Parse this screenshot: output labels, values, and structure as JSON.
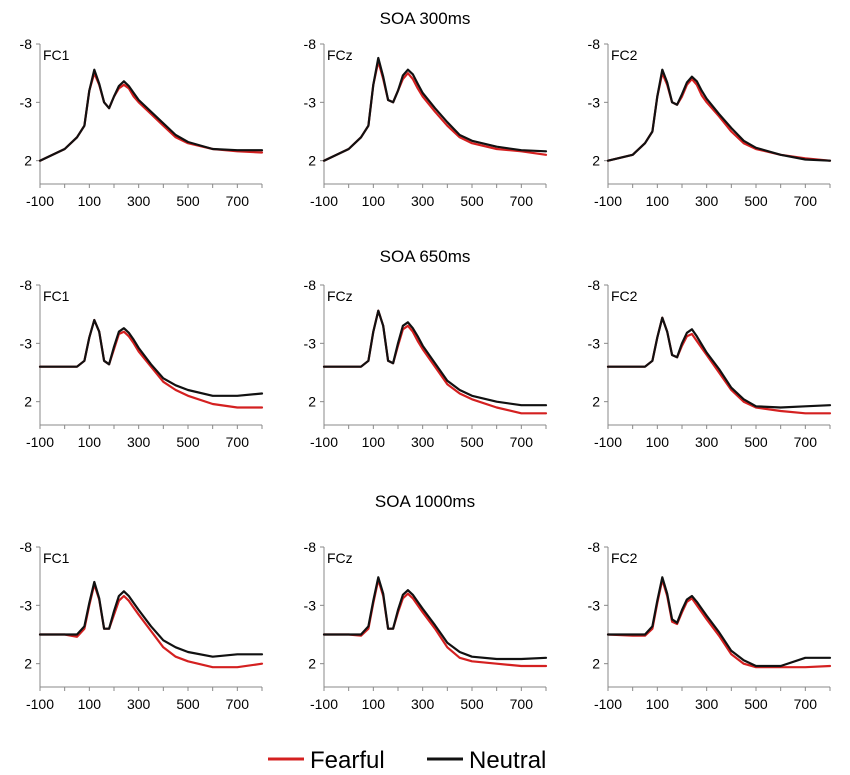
{
  "legend": {
    "fearful": "Fearful",
    "neutral": "Neutral"
  },
  "colors": {
    "fearful": "#d42020",
    "neutral": "#111111"
  },
  "chart_data": [
    {
      "type": "line",
      "title": "SOA 300ms",
      "electrodes": [
        "FC1",
        "FCz",
        "FC2"
      ],
      "x": [
        -100,
        0,
        50,
        80,
        100,
        120,
        140,
        160,
        180,
        200,
        220,
        240,
        260,
        280,
        300,
        350,
        400,
        450,
        500,
        600,
        700,
        800
      ],
      "xlim": [
        -100,
        800
      ],
      "ylim": [
        -8,
        4
      ],
      "xticks": [
        -100,
        100,
        300,
        500,
        700
      ],
      "yticks": [
        -8,
        -3,
        2
      ],
      "y_inverted": true,
      "panels": [
        {
          "electrode": "FC1",
          "series": [
            {
              "name": "Fearful",
              "values": [
                2,
                1,
                0,
                -1,
                -4,
                -5.5,
                -4.5,
                -3,
                -2.5,
                -3.5,
                -4.2,
                -4.5,
                -4.2,
                -3.5,
                -3,
                -2,
                -1,
                0,
                0.5,
                1,
                1.2,
                1.3
              ]
            },
            {
              "name": "Neutral",
              "values": [
                2,
                1,
                0,
                -1,
                -4,
                -5.8,
                -4.6,
                -3,
                -2.5,
                -3.5,
                -4.4,
                -4.8,
                -4.4,
                -3.8,
                -3.2,
                -2.2,
                -1.2,
                -0.2,
                0.4,
                1,
                1.1,
                1.1
              ]
            }
          ]
        },
        {
          "electrode": "FCz",
          "series": [
            {
              "name": "Fearful",
              "values": [
                2,
                1,
                0,
                -1,
                -4.5,
                -6.5,
                -5,
                -3.2,
                -3,
                -4,
                -5,
                -5.5,
                -5,
                -4.2,
                -3.5,
                -2.2,
                -1,
                0,
                0.5,
                1,
                1.2,
                1.5
              ]
            },
            {
              "name": "Neutral",
              "values": [
                2,
                1,
                0,
                -1,
                -4.5,
                -6.8,
                -5.2,
                -3.2,
                -3,
                -4,
                -5.3,
                -5.8,
                -5.4,
                -4.6,
                -3.8,
                -2.5,
                -1.3,
                -0.2,
                0.3,
                0.8,
                1.1,
                1.2
              ]
            }
          ]
        },
        {
          "electrode": "FC2",
          "series": [
            {
              "name": "Fearful",
              "values": [
                2,
                1.5,
                0.5,
                -0.5,
                -3.5,
                -5.5,
                -4.5,
                -3,
                -2.8,
                -3.5,
                -4.5,
                -5,
                -4.5,
                -3.6,
                -3,
                -1.8,
                -0.5,
                0.5,
                1,
                1.5,
                1.8,
                2
              ]
            },
            {
              "name": "Neutral",
              "values": [
                2,
                1.5,
                0.5,
                -0.5,
                -3.5,
                -5.8,
                -4.7,
                -3,
                -2.8,
                -3.7,
                -4.7,
                -5.2,
                -4.8,
                -4,
                -3.3,
                -2,
                -0.8,
                0.3,
                0.9,
                1.5,
                1.9,
                2
              ]
            }
          ]
        }
      ]
    },
    {
      "type": "line",
      "title": "SOA 650ms",
      "electrodes": [
        "FC1",
        "FCz",
        "FC2"
      ],
      "x": [
        -100,
        0,
        50,
        80,
        100,
        120,
        140,
        160,
        180,
        200,
        220,
        240,
        260,
        280,
        300,
        350,
        400,
        450,
        500,
        600,
        700,
        800
      ],
      "xlim": [
        -100,
        800
      ],
      "ylim": [
        -8,
        4
      ],
      "xticks": [
        -100,
        100,
        300,
        500,
        700
      ],
      "yticks": [
        -8,
        -3,
        2
      ],
      "y_inverted": true,
      "panels": [
        {
          "electrode": "FC1",
          "series": [
            {
              "name": "Fearful",
              "values": [
                -1,
                -1,
                -1,
                -1.5,
                -3.5,
                -5,
                -4,
                -1.5,
                -1.2,
                -2.5,
                -3.8,
                -4,
                -3.6,
                -3,
                -2.3,
                -1,
                0.3,
                1,
                1.5,
                2.2,
                2.5,
                2.5
              ]
            },
            {
              "name": "Neutral",
              "values": [
                -1,
                -1,
                -1,
                -1.5,
                -3.5,
                -5,
                -4,
                -1.5,
                -1.2,
                -2.7,
                -4,
                -4.3,
                -3.9,
                -3.3,
                -2.6,
                -1.2,
                0,
                0.6,
                1,
                1.5,
                1.5,
                1.3
              ]
            }
          ]
        },
        {
          "electrode": "FCz",
          "series": [
            {
              "name": "Fearful",
              "values": [
                -1,
                -1,
                -1,
                -1.5,
                -4,
                -5.8,
                -4.5,
                -1.5,
                -1.3,
                -2.8,
                -4.2,
                -4.5,
                -4,
                -3.2,
                -2.5,
                -1,
                0.5,
                1.3,
                1.8,
                2.5,
                3,
                3
              ]
            },
            {
              "name": "Neutral",
              "values": [
                -1,
                -1,
                -1,
                -1.5,
                -4,
                -5.8,
                -4.5,
                -1.5,
                -1.3,
                -3,
                -4.5,
                -4.8,
                -4.3,
                -3.6,
                -2.8,
                -1.3,
                0.2,
                1,
                1.5,
                2,
                2.3,
                2.3
              ]
            }
          ]
        },
        {
          "electrode": "FC2",
          "series": [
            {
              "name": "Fearful",
              "values": [
                -1,
                -1,
                -1,
                -1.5,
                -3.5,
                -5.2,
                -4,
                -2,
                -1.8,
                -2.8,
                -3.6,
                -3.8,
                -3.2,
                -2.6,
                -2,
                -0.5,
                1,
                2,
                2.5,
                2.8,
                3,
                3
              ]
            },
            {
              "name": "Neutral",
              "values": [
                -1,
                -1,
                -1,
                -1.5,
                -3.5,
                -5.2,
                -4,
                -2,
                -1.8,
                -3,
                -3.9,
                -4.2,
                -3.6,
                -2.9,
                -2.2,
                -0.8,
                0.8,
                1.8,
                2.4,
                2.5,
                2.4,
                2.3
              ]
            }
          ]
        }
      ]
    },
    {
      "type": "line",
      "title": "SOA 1000ms",
      "electrodes": [
        "FC1",
        "FCz",
        "FC2"
      ],
      "x": [
        -100,
        0,
        50,
        80,
        100,
        120,
        140,
        160,
        180,
        200,
        220,
        240,
        260,
        280,
        300,
        350,
        400,
        450,
        500,
        600,
        700,
        800
      ],
      "xlim": [
        -100,
        800
      ],
      "ylim": [
        -8,
        4
      ],
      "xticks": [
        -100,
        100,
        300,
        500,
        700
      ],
      "yticks": [
        -8,
        -3,
        2
      ],
      "y_inverted": true,
      "panels": [
        {
          "electrode": "FC1",
          "series": [
            {
              "name": "Fearful",
              "values": [
                -0.5,
                -0.5,
                -0.3,
                -1,
                -3,
                -4.8,
                -3.5,
                -1,
                -1,
                -2.2,
                -3.4,
                -3.8,
                -3.4,
                -2.8,
                -2.2,
                -0.8,
                0.6,
                1.4,
                1.8,
                2.3,
                2.3,
                2
              ]
            },
            {
              "name": "Neutral",
              "values": [
                -0.5,
                -0.5,
                -0.5,
                -1.2,
                -3.2,
                -5,
                -3.6,
                -1,
                -1,
                -2.5,
                -3.8,
                -4.2,
                -3.8,
                -3.2,
                -2.6,
                -1.2,
                0,
                0.6,
                1,
                1.4,
                1.2,
                1.2
              ]
            }
          ]
        },
        {
          "electrode": "FCz",
          "series": [
            {
              "name": "Fearful",
              "values": [
                -0.5,
                -0.5,
                -0.4,
                -1,
                -3.2,
                -5.2,
                -3.8,
                -1,
                -1,
                -2.4,
                -3.6,
                -4,
                -3.6,
                -3,
                -2.4,
                -1,
                0.6,
                1.5,
                1.8,
                2,
                2.2,
                2.2
              ]
            },
            {
              "name": "Neutral",
              "values": [
                -0.5,
                -0.5,
                -0.5,
                -1.2,
                -3.4,
                -5.4,
                -4,
                -1,
                -1,
                -2.6,
                -3.9,
                -4.3,
                -3.9,
                -3.3,
                -2.7,
                -1.3,
                0.2,
                1,
                1.4,
                1.6,
                1.6,
                1.5
              ]
            }
          ]
        },
        {
          "electrode": "FC2",
          "series": [
            {
              "name": "Fearful",
              "values": [
                -0.5,
                -0.4,
                -0.4,
                -1,
                -3.2,
                -5.2,
                -3.8,
                -1.6,
                -1.4,
                -2.4,
                -3.3,
                -3.6,
                -3,
                -2.4,
                -1.8,
                -0.4,
                1.2,
                2,
                2.3,
                2.3,
                2.3,
                2.2
              ]
            },
            {
              "name": "Neutral",
              "values": [
                -0.5,
                -0.5,
                -0.5,
                -1.2,
                -3.4,
                -5.4,
                -4,
                -1.8,
                -1.5,
                -2.6,
                -3.5,
                -3.8,
                -3.3,
                -2.7,
                -2.1,
                -0.7,
                0.9,
                1.7,
                2.2,
                2.2,
                1.5,
                1.5
              ]
            }
          ]
        }
      ]
    }
  ]
}
